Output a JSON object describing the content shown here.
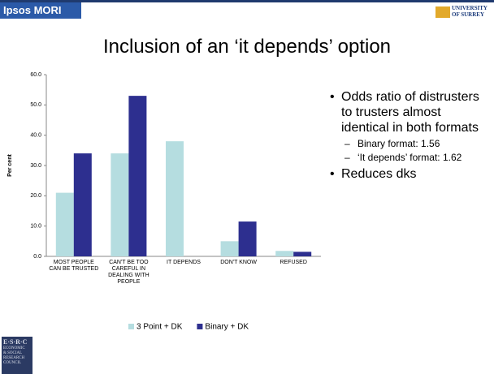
{
  "slide": {
    "org": "Ipsos MORI",
    "university": "UNIVERSITY OF SURREY",
    "title": "Inclusion of an ‘it depends’ option",
    "bullets": [
      {
        "text": "Odds ratio of distrusters to trusters almost identical in both formats",
        "subs": [
          "Binary format: 1.56",
          "‘It depends’ format: 1.62"
        ]
      },
      {
        "text": "Reduces dks",
        "subs": []
      }
    ],
    "funder": [
      "E·S·R·C",
      "ECONOMIC",
      "& SOCIAL",
      "RESEARCH",
      "COUNCIL"
    ]
  },
  "chart_data": {
    "type": "bar",
    "ylabel": "Per cent",
    "categories": [
      "MOST PEOPLE CAN BE TRUSTED",
      "CAN'T BE TOO CAREFUL IN DEALING WITH PEOPLE",
      "IT DEPENDS",
      "DON'T KNOW",
      "REFUSED"
    ],
    "series": [
      {
        "name": "3 Point + DK",
        "color": "#b5dde0",
        "values": [
          21,
          34,
          38,
          5,
          1.8
        ]
      },
      {
        "name": "Binary + DK",
        "color": "#2d2f8f",
        "values": [
          34,
          53,
          null,
          11.5,
          1.5
        ]
      }
    ],
    "ylim": [
      0,
      60
    ],
    "yticks": [
      {
        "value": 0,
        "label": "0.0"
      },
      {
        "value": 10,
        "label": "10.0"
      },
      {
        "value": 20,
        "label": "20.0"
      },
      {
        "value": 30,
        "label": "30.0"
      },
      {
        "value": 40,
        "label": "40.0"
      },
      {
        "value": 50,
        "label": "50.0"
      },
      {
        "value": 60,
        "label": "60.0"
      }
    ],
    "grid": false,
    "legend": "bottom"
  }
}
